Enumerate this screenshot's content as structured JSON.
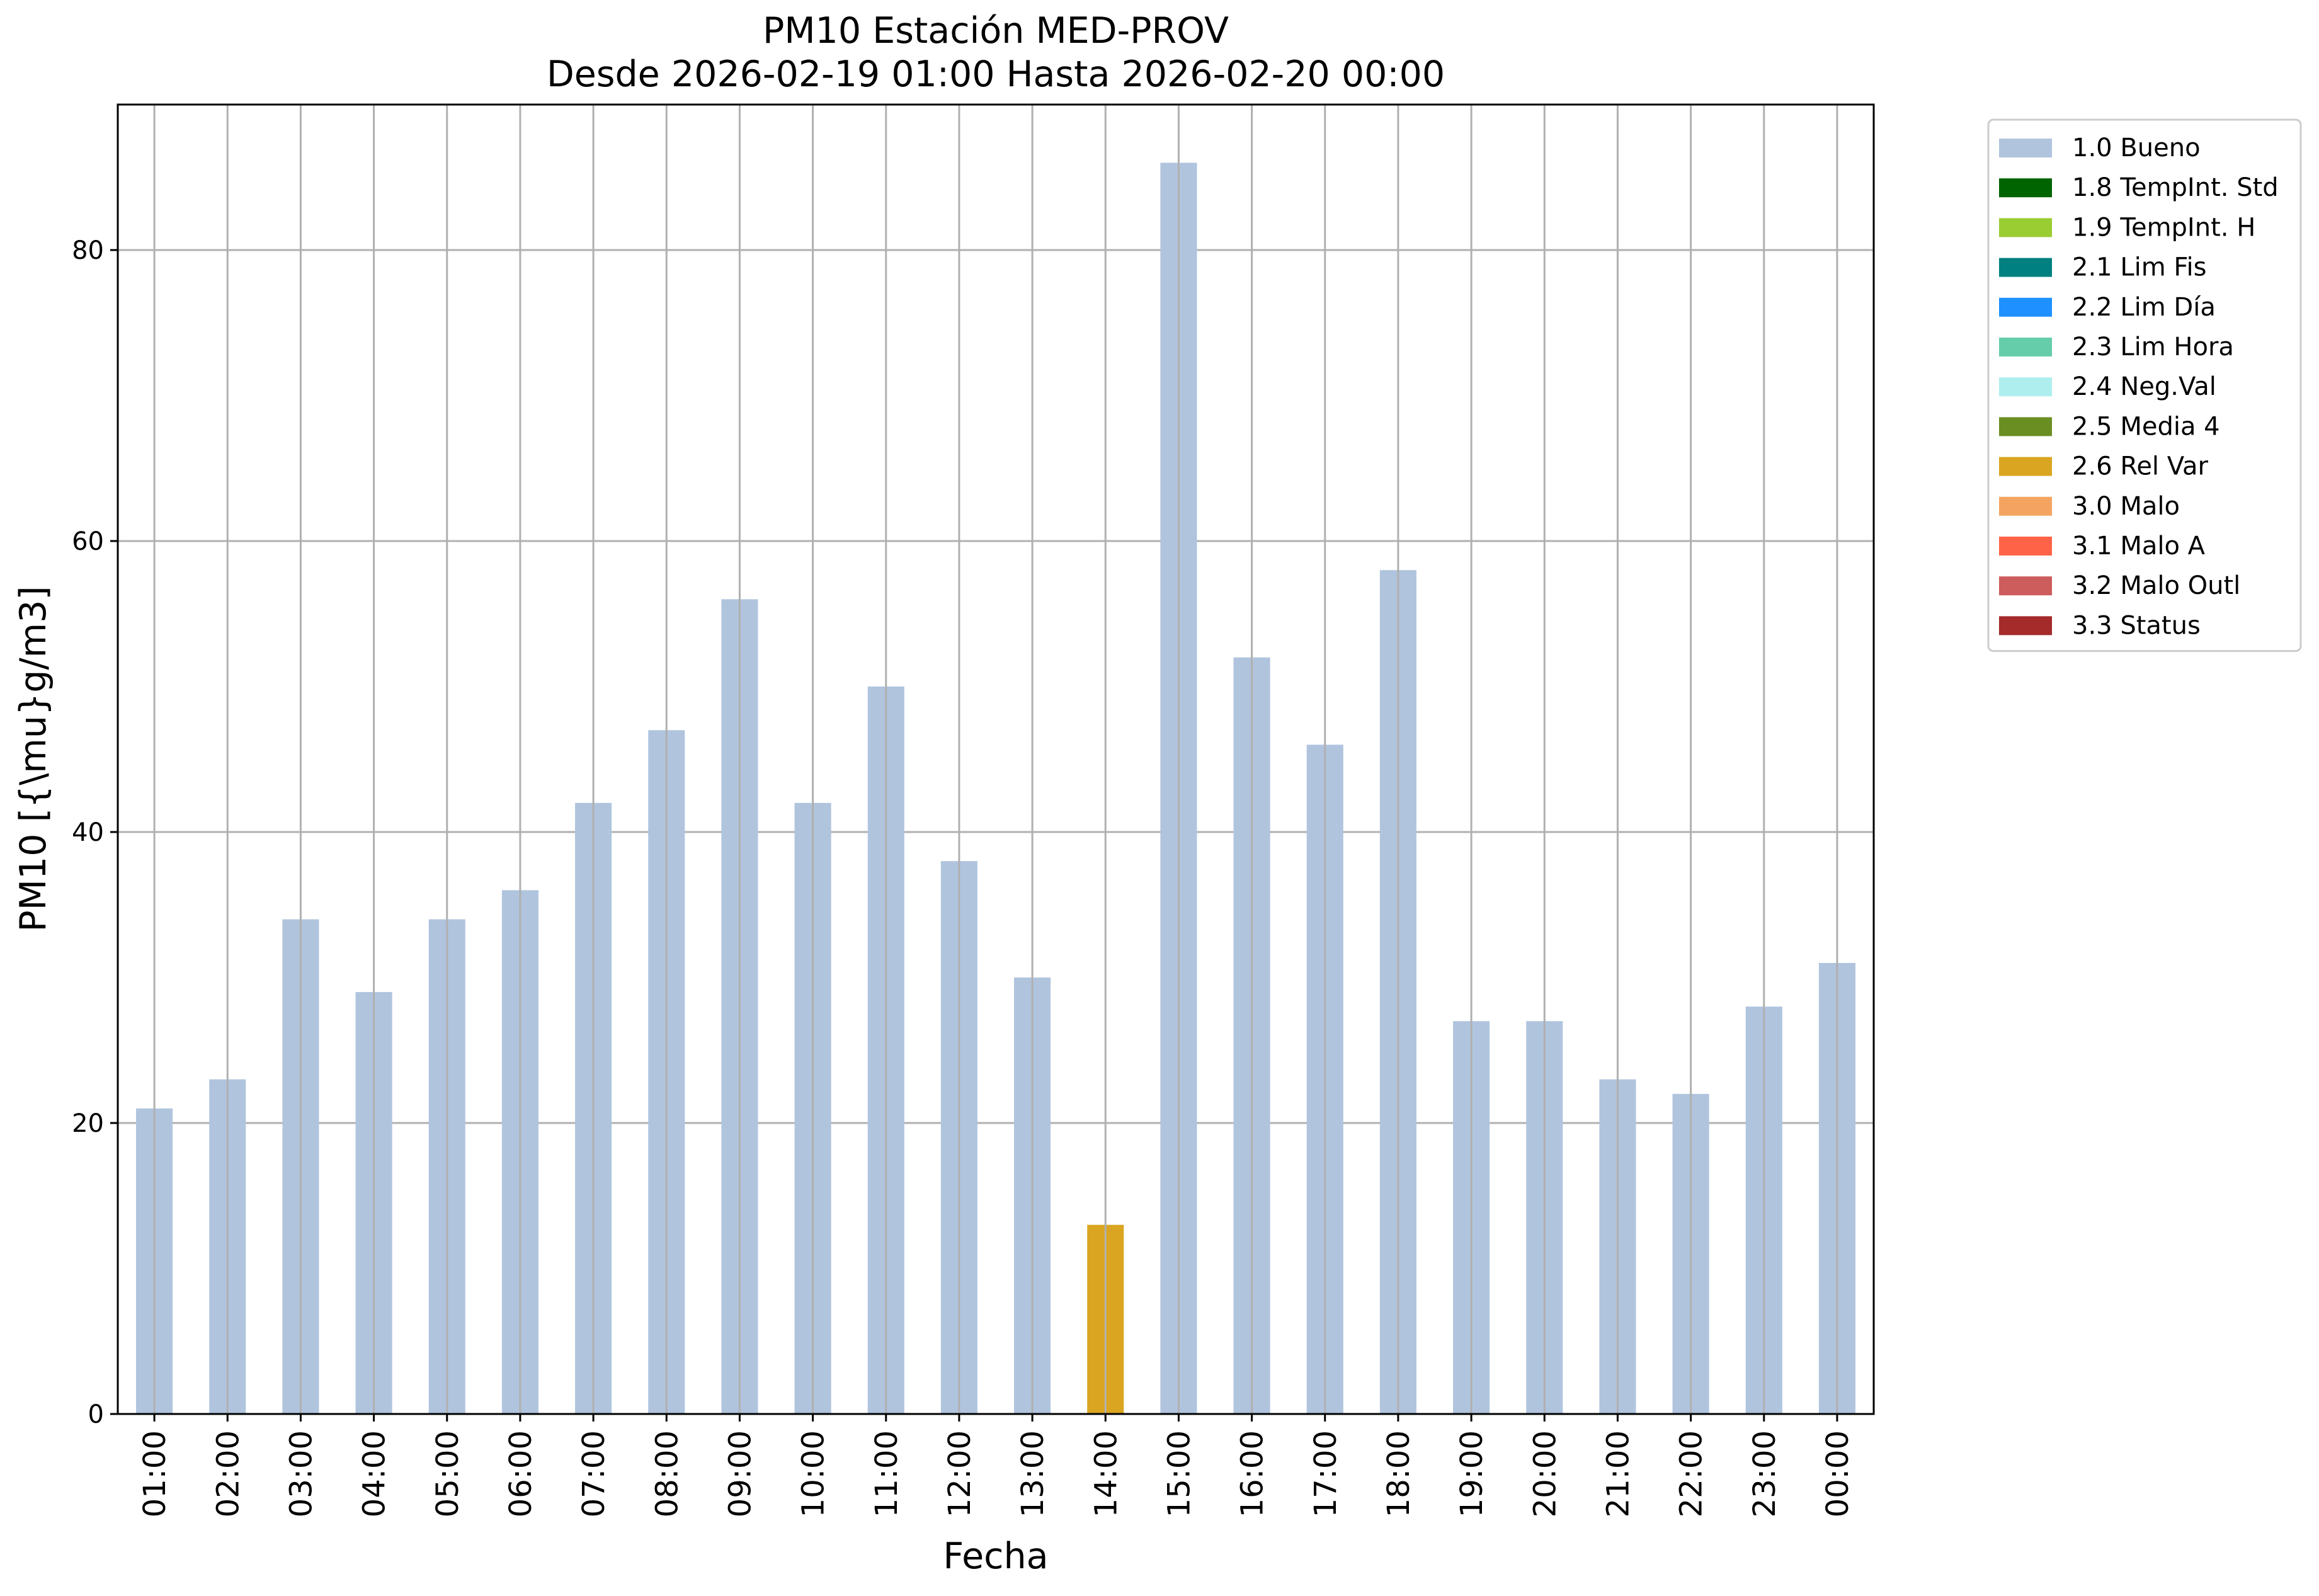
{
  "chart_data": {
    "type": "bar",
    "title": "PM10 Estación MED-PROV",
    "subtitle": "Desde 2026-02-19 01:00 Hasta 2026-02-20 00:00",
    "xlabel": "Fecha",
    "ylabel": "PM10 [{\\mu}g/m3]",
    "ylim": [
      0,
      90
    ],
    "yticks": [
      0,
      20,
      40,
      60,
      80
    ],
    "grid": true,
    "stacked": true,
    "legend_position": "outside-top-right",
    "categories": [
      "01:00",
      "02:00",
      "03:00",
      "04:00",
      "05:00",
      "06:00",
      "07:00",
      "08:00",
      "09:00",
      "10:00",
      "11:00",
      "12:00",
      "13:00",
      "14:00",
      "15:00",
      "16:00",
      "17:00",
      "18:00",
      "19:00",
      "20:00",
      "21:00",
      "22:00",
      "23:00",
      "00:00"
    ],
    "series": [
      {
        "name": "1.0 Bueno",
        "color": "#b0c4de",
        "values": [
          21,
          23,
          34,
          29,
          34,
          36,
          42,
          47,
          56,
          42,
          50,
          38,
          30,
          0,
          86,
          52,
          46,
          58,
          27,
          27,
          23,
          22,
          28,
          31
        ]
      },
      {
        "name": "1.8 TempInt. Std",
        "color": "#006400",
        "values": [
          0,
          0,
          0,
          0,
          0,
          0,
          0,
          0,
          0,
          0,
          0,
          0,
          0,
          0,
          0,
          0,
          0,
          0,
          0,
          0,
          0,
          0,
          0,
          0
        ]
      },
      {
        "name": "1.9 TempInt. H",
        "color": "#9acd32",
        "values": [
          0,
          0,
          0,
          0,
          0,
          0,
          0,
          0,
          0,
          0,
          0,
          0,
          0,
          0,
          0,
          0,
          0,
          0,
          0,
          0,
          0,
          0,
          0,
          0
        ]
      },
      {
        "name": "2.1 Lim Fis",
        "color": "#008080",
        "values": [
          0,
          0,
          0,
          0,
          0,
          0,
          0,
          0,
          0,
          0,
          0,
          0,
          0,
          0,
          0,
          0,
          0,
          0,
          0,
          0,
          0,
          0,
          0,
          0
        ]
      },
      {
        "name": "2.2 Lim Día",
        "color": "#1e90ff",
        "values": [
          0,
          0,
          0,
          0,
          0,
          0,
          0,
          0,
          0,
          0,
          0,
          0,
          0,
          0,
          0,
          0,
          0,
          0,
          0,
          0,
          0,
          0,
          0,
          0
        ]
      },
      {
        "name": "2.3 Lim Hora",
        "color": "#66cdaa",
        "values": [
          0,
          0,
          0,
          0,
          0,
          0,
          0,
          0,
          0,
          0,
          0,
          0,
          0,
          0,
          0,
          0,
          0,
          0,
          0,
          0,
          0,
          0,
          0,
          0
        ]
      },
      {
        "name": "2.4 Neg.Val",
        "color": "#afeeee",
        "values": [
          0,
          0,
          0,
          0,
          0,
          0,
          0,
          0,
          0,
          0,
          0,
          0,
          0,
          0,
          0,
          0,
          0,
          0,
          0,
          0,
          0,
          0,
          0,
          0
        ]
      },
      {
        "name": "2.5 Media 4",
        "color": "#6b8e23",
        "values": [
          0,
          0,
          0,
          0,
          0,
          0,
          0,
          0,
          0,
          0,
          0,
          0,
          0,
          0,
          0,
          0,
          0,
          0,
          0,
          0,
          0,
          0,
          0,
          0
        ]
      },
      {
        "name": "2.6 Rel Var",
        "color": "#daa520",
        "values": [
          0,
          0,
          0,
          0,
          0,
          0,
          0,
          0,
          0,
          0,
          0,
          0,
          0,
          13,
          0,
          0,
          0,
          0,
          0,
          0,
          0,
          0,
          0,
          0
        ]
      },
      {
        "name": "3.0 Malo",
        "color": "#f4a460",
        "values": [
          0,
          0,
          0,
          0,
          0,
          0,
          0,
          0,
          0,
          0,
          0,
          0,
          0,
          0,
          0,
          0,
          0,
          0,
          0,
          0,
          0,
          0,
          0,
          0
        ]
      },
      {
        "name": "3.1 Malo A",
        "color": "#ff6347",
        "values": [
          0,
          0,
          0,
          0,
          0,
          0,
          0,
          0,
          0,
          0,
          0,
          0,
          0,
          0,
          0,
          0,
          0,
          0,
          0,
          0,
          0,
          0,
          0,
          0
        ]
      },
      {
        "name": "3.2 Malo Outl",
        "color": "#cd5c5c",
        "values": [
          0,
          0,
          0,
          0,
          0,
          0,
          0,
          0,
          0,
          0,
          0,
          0,
          0,
          0,
          0,
          0,
          0,
          0,
          0,
          0,
          0,
          0,
          0,
          0
        ]
      },
      {
        "name": "3.3 Status",
        "color": "#a52a2a",
        "values": [
          0,
          0,
          0,
          0,
          0,
          0,
          0,
          0,
          0,
          0,
          0,
          0,
          0,
          0,
          0,
          0,
          0,
          0,
          0,
          0,
          0,
          0,
          0,
          0
        ]
      }
    ]
  }
}
